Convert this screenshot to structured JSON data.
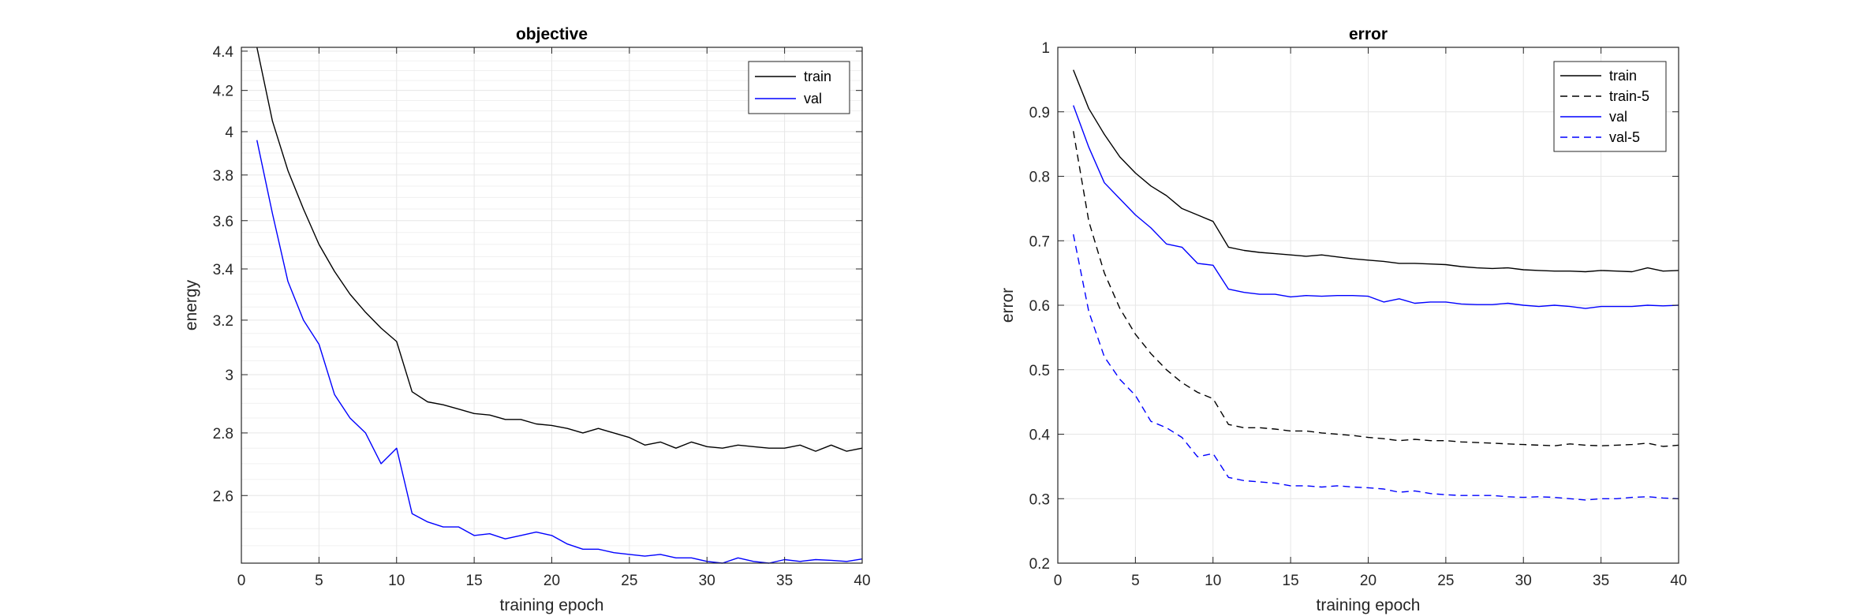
{
  "colors": {
    "train": "#000000",
    "val": "#0000ff",
    "grid": "#e6e6e6",
    "axis": "#262626"
  },
  "chart_data": [
    {
      "type": "line",
      "title": "objective",
      "xlabel": "training epoch",
      "ylabel": "energy",
      "xlim": [
        0,
        40
      ],
      "ylim": [
        2.4,
        4.42
      ],
      "yscale": "log",
      "xticks": [
        0,
        5,
        10,
        15,
        20,
        25,
        30,
        35,
        40
      ],
      "yticks": [
        2.6,
        2.8,
        3,
        3.2,
        3.4,
        3.6,
        3.8,
        4,
        4.2,
        4.4
      ],
      "yticklabels": [
        "2.6",
        "2.8",
        "3",
        "3.2",
        "3.4",
        "3.6",
        "3.8",
        "4",
        "4.2",
        "4.4"
      ],
      "grid": true,
      "legend_position": "top-right",
      "x": [
        1,
        2,
        3,
        4,
        5,
        6,
        7,
        8,
        9,
        10,
        11,
        12,
        13,
        14,
        15,
        16,
        17,
        18,
        19,
        20,
        21,
        22,
        23,
        24,
        25,
        26,
        27,
        28,
        29,
        30,
        31,
        32,
        33,
        34,
        35,
        36,
        37,
        38,
        39,
        40
      ],
      "series": [
        {
          "name": "train",
          "color": "#000000",
          "dash": "none",
          "values": [
            4.44,
            4.05,
            3.82,
            3.65,
            3.5,
            3.39,
            3.3,
            3.23,
            3.17,
            3.12,
            2.94,
            2.905,
            2.895,
            2.88,
            2.865,
            2.86,
            2.845,
            2.845,
            2.83,
            2.825,
            2.815,
            2.8,
            2.815,
            2.8,
            2.785,
            2.76,
            2.77,
            2.75,
            2.77,
            2.755,
            2.75,
            2.76,
            2.755,
            2.75,
            2.75,
            2.76,
            2.74,
            2.76,
            2.74,
            2.75
          ]
        },
        {
          "name": "val",
          "color": "#0000ff",
          "dash": "none",
          "values": [
            3.96,
            3.63,
            3.35,
            3.2,
            3.11,
            2.93,
            2.85,
            2.8,
            2.7,
            2.75,
            2.545,
            2.52,
            2.505,
            2.505,
            2.48,
            2.485,
            2.47,
            2.48,
            2.49,
            2.48,
            2.455,
            2.44,
            2.44,
            2.43,
            2.425,
            2.42,
            2.425,
            2.415,
            2.415,
            2.405,
            2.4,
            2.415,
            2.405,
            2.4,
            2.41,
            2.405,
            2.41,
            2.408,
            2.405,
            2.412
          ]
        }
      ]
    },
    {
      "type": "line",
      "title": "error",
      "xlabel": "training epoch",
      "ylabel": "error",
      "xlim": [
        0,
        40
      ],
      "ylim": [
        0.2,
        1
      ],
      "yscale": "linear",
      "xticks": [
        0,
        5,
        10,
        15,
        20,
        25,
        30,
        35,
        40
      ],
      "yticks": [
        0.2,
        0.3,
        0.4,
        0.5,
        0.6,
        0.7,
        0.8,
        0.9,
        1
      ],
      "yticklabels": [
        "0.2",
        "0.3",
        "0.4",
        "0.5",
        "0.6",
        "0.7",
        "0.8",
        "0.9",
        "1"
      ],
      "grid": true,
      "legend_position": "top-right",
      "x": [
        1,
        2,
        3,
        4,
        5,
        6,
        7,
        8,
        9,
        10,
        11,
        12,
        13,
        14,
        15,
        16,
        17,
        18,
        19,
        20,
        21,
        22,
        23,
        24,
        25,
        26,
        27,
        28,
        29,
        30,
        31,
        32,
        33,
        34,
        35,
        36,
        37,
        38,
        39,
        40
      ],
      "series": [
        {
          "name": "train",
          "color": "#000000",
          "dash": "none",
          "values": [
            0.965,
            0.905,
            0.865,
            0.83,
            0.805,
            0.785,
            0.77,
            0.75,
            0.74,
            0.73,
            0.69,
            0.685,
            0.682,
            0.68,
            0.678,
            0.676,
            0.678,
            0.675,
            0.672,
            0.67,
            0.668,
            0.665,
            0.665,
            0.664,
            0.663,
            0.66,
            0.658,
            0.657,
            0.658,
            0.655,
            0.654,
            0.653,
            0.653,
            0.652,
            0.654,
            0.653,
            0.652,
            0.658,
            0.653,
            0.654
          ]
        },
        {
          "name": "train-5",
          "color": "#000000",
          "dash": "9,6",
          "values": [
            0.87,
            0.73,
            0.65,
            0.595,
            0.555,
            0.525,
            0.5,
            0.48,
            0.465,
            0.455,
            0.415,
            0.41,
            0.41,
            0.408,
            0.405,
            0.405,
            0.402,
            0.4,
            0.398,
            0.395,
            0.393,
            0.39,
            0.392,
            0.39,
            0.39,
            0.388,
            0.387,
            0.386,
            0.385,
            0.384,
            0.383,
            0.382,
            0.385,
            0.383,
            0.382,
            0.383,
            0.384,
            0.386,
            0.381,
            0.383
          ]
        },
        {
          "name": "val",
          "color": "#0000ff",
          "dash": "none",
          "values": [
            0.91,
            0.845,
            0.79,
            0.765,
            0.74,
            0.72,
            0.695,
            0.69,
            0.665,
            0.662,
            0.625,
            0.62,
            0.617,
            0.617,
            0.613,
            0.615,
            0.614,
            0.615,
            0.615,
            0.614,
            0.605,
            0.61,
            0.603,
            0.605,
            0.605,
            0.602,
            0.601,
            0.601,
            0.603,
            0.6,
            0.598,
            0.6,
            0.598,
            0.595,
            0.598,
            0.598,
            0.598,
            0.6,
            0.599,
            0.6
          ]
        },
        {
          "name": "val-5",
          "color": "#0000ff",
          "dash": "9,6",
          "values": [
            0.71,
            0.59,
            0.52,
            0.485,
            0.46,
            0.42,
            0.41,
            0.395,
            0.365,
            0.37,
            0.333,
            0.328,
            0.326,
            0.324,
            0.32,
            0.32,
            0.318,
            0.32,
            0.318,
            0.317,
            0.315,
            0.31,
            0.312,
            0.308,
            0.306,
            0.305,
            0.305,
            0.305,
            0.303,
            0.302,
            0.303,
            0.302,
            0.3,
            0.298,
            0.3,
            0.3,
            0.302,
            0.303,
            0.301,
            0.3
          ]
        }
      ]
    }
  ]
}
